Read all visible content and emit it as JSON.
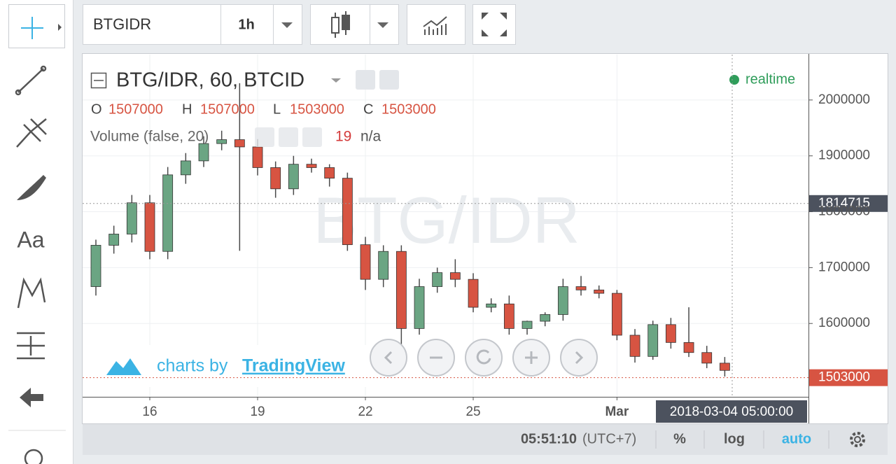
{
  "toolbar": {
    "symbol": "BTGIDR",
    "interval": "1h"
  },
  "legend": {
    "title": "BTG/IDR, 60, BTCID",
    "o_label": "O",
    "open": 1507000,
    "h_label": "H",
    "high": 1507000,
    "l_label": "L",
    "low": 1503000,
    "c_label": "C",
    "close": 1503000,
    "volume_label": "Volume (false, 20)",
    "volume_value": 19,
    "volume_na": "n/a"
  },
  "status": "realtime",
  "watermark": "BTG/IDR",
  "branding": {
    "prefix": "charts by",
    "name": "TradingView"
  },
  "bottom_bar": {
    "time": "05:51:10",
    "timezone": "(UTC+7)",
    "percent": "%",
    "log": "log",
    "auto": "auto"
  },
  "chart_data": {
    "type": "candlestick",
    "x": [
      14.5,
      15,
      15.5,
      16,
      16.5,
      17,
      17.5,
      18,
      18.5,
      19,
      19.5,
      20,
      20.5,
      21,
      21.5,
      22,
      22.5,
      23,
      23.5,
      24,
      24.5,
      25,
      25.5,
      26,
      26.5,
      27,
      27.5,
      28,
      28.5,
      29,
      29.5,
      30,
      30.5,
      31,
      31.5,
      32
    ],
    "open": [
      1666000,
      1740000,
      1760000,
      1816000,
      1729000,
      1866000,
      1891000,
      1922000,
      1929000,
      1916000,
      1879000,
      1841000,
      1885000,
      1879000,
      1860000,
      1741000,
      1679000,
      1729000,
      1591000,
      1666000,
      1691000,
      1679000,
      1629000,
      1635000,
      1591000,
      1604000,
      1616000,
      1666000,
      1660000,
      1654000,
      1579000,
      1541000,
      1598000,
      1566000,
      1548000,
      1529000
    ],
    "high": [
      1750000,
      1775000,
      1830000,
      1830000,
      1880000,
      1905000,
      1935000,
      1945000,
      2030000,
      1930000,
      1890000,
      1900000,
      1895000,
      1885000,
      1870000,
      1755000,
      1740000,
      1740000,
      1680000,
      1700000,
      1715000,
      1690000,
      1645000,
      1650000,
      1605000,
      1620000,
      1680000,
      1685000,
      1668000,
      1660000,
      1590000,
      1605000,
      1610000,
      1629000,
      1560000,
      1540000
    ],
    "low": [
      1650000,
      1725000,
      1745000,
      1715000,
      1715000,
      1850000,
      1880000,
      1910000,
      1730000,
      1865000,
      1825000,
      1830000,
      1870000,
      1845000,
      1730000,
      1660000,
      1665000,
      1560000,
      1580000,
      1655000,
      1665000,
      1620000,
      1620000,
      1580000,
      1580000,
      1595000,
      1605000,
      1650000,
      1645000,
      1570000,
      1530000,
      1535000,
      1555000,
      1540000,
      1520000,
      1505000
    ],
    "close": [
      1740000,
      1760000,
      1816000,
      1729000,
      1866000,
      1891000,
      1922000,
      1929000,
      1916000,
      1879000,
      1841000,
      1885000,
      1879000,
      1860000,
      1741000,
      1679000,
      1729000,
      1591000,
      1666000,
      1691000,
      1679000,
      1629000,
      1635000,
      1591000,
      1604000,
      1616000,
      1666000,
      1660000,
      1654000,
      1579000,
      1541000,
      1598000,
      1566000,
      1548000,
      1529000,
      1516000
    ],
    "up_color": "#6ba583",
    "down_color": "#d75442",
    "xlim": [
      14.13,
      34.33
    ],
    "ylim": [
      1468750,
      2081250
    ],
    "xticks": [
      16,
      19,
      22,
      25,
      {
        "value": 29,
        "label": "Mar"
      }
    ],
    "yticks": [
      1600000,
      1700000,
      1800000,
      1900000,
      2000000
    ],
    "grid": true,
    "crosshair": {
      "price": 1814715,
      "time": "2018-03-04 05:00:00"
    },
    "last_price": 1503000
  }
}
